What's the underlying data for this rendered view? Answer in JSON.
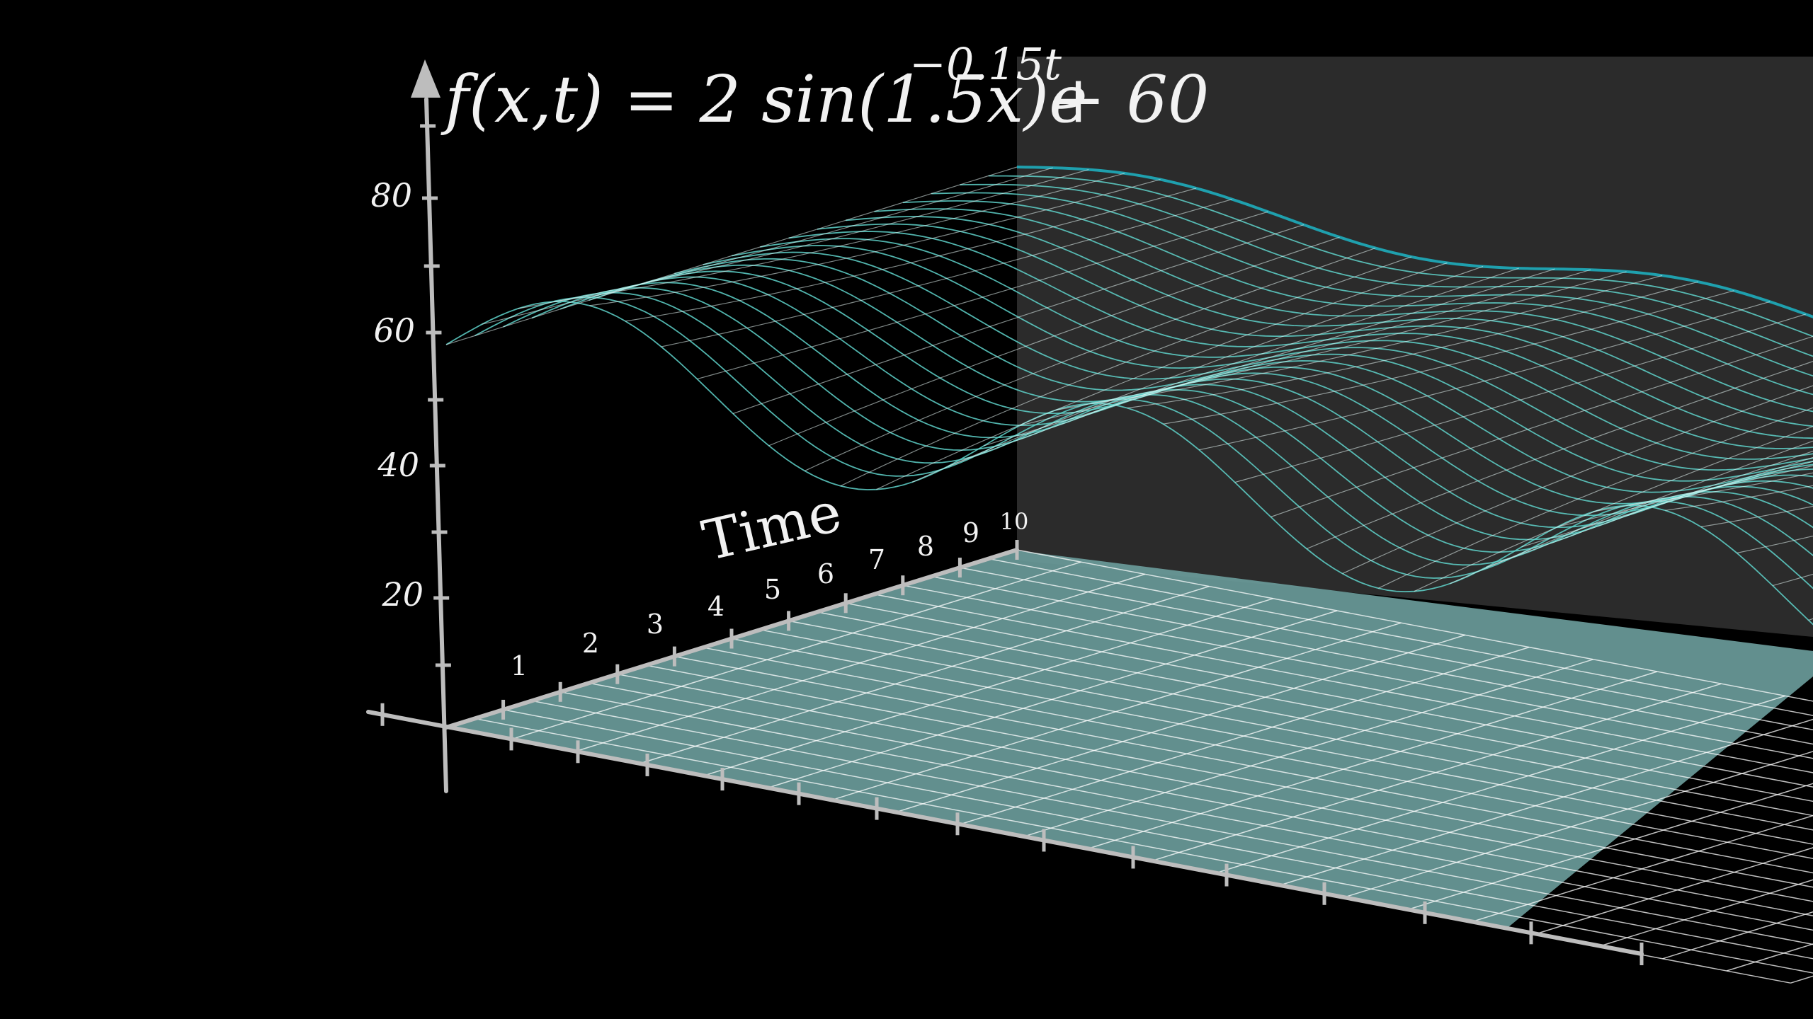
{
  "formula": {
    "lhs": "f(x,t) = 2 sin(1.5x)e",
    "exponent": "−0.15t",
    "rhs": "+ 60"
  },
  "axes": {
    "time_label": "Time",
    "time_ticks": [
      "1",
      "2",
      "3",
      "4",
      "5",
      "6",
      "7",
      "8",
      "9",
      "10"
    ],
    "y_ticks": [
      "20",
      "40",
      "60",
      "80"
    ]
  },
  "colors": {
    "background": "#000000",
    "back_wall": "#2b2b2b",
    "floor": "#6a9b9a",
    "surface_teal": "#45c8c0",
    "surface_highlight": "#1fa7b5",
    "axis": "#bdbdbd",
    "text": "#f2f2f2"
  },
  "chart_data": {
    "type": "surface",
    "function": "2*sin(1.5*x)*exp(-0.15*t) + 60",
    "t_range": [
      0,
      10
    ],
    "y_axis_ticks": [
      20,
      40,
      60,
      80
    ]
  }
}
